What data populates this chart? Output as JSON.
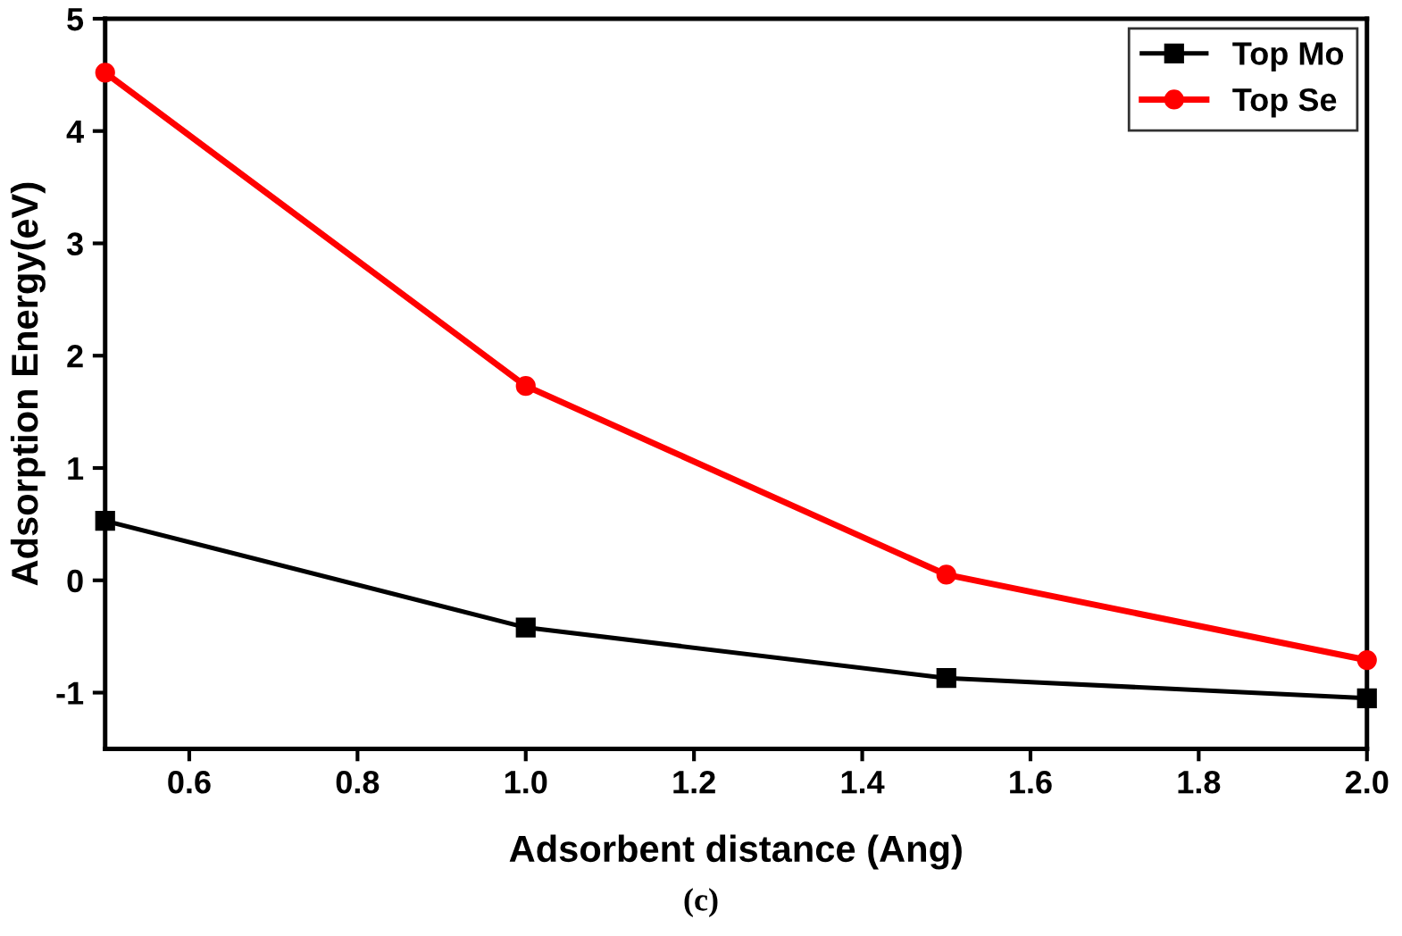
{
  "chart_data": {
    "type": "line",
    "xlabel": "Adsorbent distance (Ang)",
    "ylabel": "Adsorption Energy(eV)",
    "x": [
      0.5,
      1.0,
      1.5,
      2.0
    ],
    "series": [
      {
        "name": "Top Mo",
        "color": "#000000",
        "values": [
          0.53,
          -0.42,
          -0.87,
          -1.05
        ],
        "marker": "square"
      },
      {
        "name": "Top Se",
        "color": "#ff0000",
        "values": [
          4.52,
          1.73,
          0.05,
          -0.71
        ],
        "marker": "circle"
      }
    ],
    "xlim": [
      0.5,
      2.0
    ],
    "xticks": [
      0.6,
      0.8,
      {
        "value": 1,
        "label": "1.0"
      },
      1.2,
      1.4,
      1.6,
      1.8,
      {
        "value": 2,
        "label": "2.0"
      }
    ],
    "ylim": [
      -1.5,
      5
    ],
    "yticks": [
      -1,
      0,
      1,
      2,
      3,
      4,
      5
    ],
    "grid": false,
    "legend": "top right",
    "line_style": "solid",
    "annotations": [
      "(c)"
    ]
  }
}
